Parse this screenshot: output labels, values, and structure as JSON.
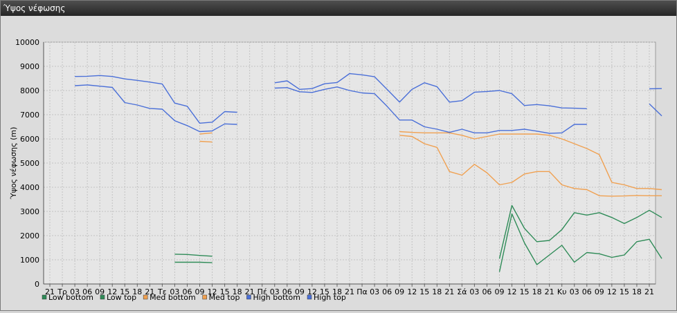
{
  "window": {
    "title": "Ύψος νέφωσης"
  },
  "chart_data": {
    "type": "line",
    "title": "",
    "xlabel": "",
    "ylabel": "Ύψος νέφωσης (m)",
    "ylim": [
      0,
      10000
    ],
    "yticks": [
      0,
      1000,
      2000,
      3000,
      4000,
      5000,
      6000,
      7000,
      8000,
      9000,
      10000
    ],
    "grid": true,
    "legend_position": "bottom-left",
    "x_tick_labels": [
      "21",
      "Τρ",
      "03",
      "06",
      "09",
      "12",
      "15",
      "18",
      "21",
      "Τε",
      "03",
      "06",
      "09",
      "12",
      "15",
      "18",
      "21",
      "Πέ",
      "03",
      "06",
      "09",
      "12",
      "15",
      "18",
      "21",
      "Πα",
      "03",
      "06",
      "09",
      "12",
      "15",
      "18",
      "21",
      "Σά",
      "03",
      "06",
      "09",
      "12",
      "15",
      "18",
      "21",
      "Κυ",
      "03",
      "06",
      "09",
      "12",
      "15",
      "18",
      "21"
    ],
    "series": [
      {
        "name": "Low bottom",
        "color": "#2e8b57",
        "segments": [
          [
            [
              10,
              900
            ],
            [
              11,
              900
            ],
            [
              12,
              900
            ],
            [
              13,
              880
            ]
          ],
          [
            [
              36,
              500
            ],
            [
              37,
              2900
            ],
            [
              38,
              1700
            ],
            [
              39,
              800
            ],
            [
              40,
              1200
            ],
            [
              41,
              1600
            ],
            [
              42,
              900
            ],
            [
              43,
              1300
            ],
            [
              44,
              1250
            ],
            [
              45,
              1100
            ],
            [
              46,
              1200
            ],
            [
              47,
              1750
            ],
            [
              48,
              1850
            ],
            [
              49,
              1050
            ]
          ]
        ]
      },
      {
        "name": "Low top",
        "color": "#2e8b57",
        "segments": [
          [
            [
              10,
              1230
            ],
            [
              11,
              1220
            ],
            [
              12,
              1180
            ],
            [
              13,
              1150
            ]
          ],
          [
            [
              36,
              1050
            ],
            [
              37,
              3250
            ],
            [
              38,
              2300
            ],
            [
              39,
              1750
            ],
            [
              40,
              1800
            ],
            [
              41,
              2250
            ],
            [
              42,
              2950
            ],
            [
              43,
              2850
            ],
            [
              44,
              2950
            ],
            [
              45,
              2750
            ],
            [
              46,
              2500
            ],
            [
              47,
              2750
            ],
            [
              48,
              3050
            ],
            [
              49,
              2750
            ]
          ]
        ]
      },
      {
        "name": "Med bottom",
        "color": "#f0a050",
        "segments": [
          [
            [
              12,
              5900
            ],
            [
              13,
              5870
            ]
          ],
          [
            [
              28,
              6150
            ],
            [
              29,
              6100
            ],
            [
              30,
              5800
            ],
            [
              31,
              5650
            ],
            [
              32,
              4650
            ],
            [
              33,
              4500
            ],
            [
              34,
              4950
            ],
            [
              35,
              4600
            ],
            [
              36,
              4100
            ],
            [
              37,
              4200
            ],
            [
              38,
              4550
            ],
            [
              39,
              4650
            ],
            [
              40,
              4650
            ],
            [
              41,
              4100
            ],
            [
              42,
              3950
            ],
            [
              43,
              3900
            ],
            [
              44,
              3650
            ],
            [
              45,
              3630
            ],
            [
              46,
              3640
            ],
            [
              47,
              3660
            ],
            [
              48,
              3650
            ],
            [
              49,
              3650
            ]
          ]
        ]
      },
      {
        "name": "Med top",
        "color": "#f0a050",
        "segments": [
          [
            [
              12,
              6200
            ],
            [
              13,
              6250
            ]
          ],
          [
            [
              28,
              6300
            ],
            [
              29,
              6270
            ],
            [
              30,
              6250
            ],
            [
              31,
              6250
            ],
            [
              32,
              6250
            ],
            [
              33,
              6150
            ],
            [
              34,
              6000
            ],
            [
              35,
              6100
            ],
            [
              36,
              6200
            ],
            [
              37,
              6200
            ],
            [
              38,
              6200
            ],
            [
              39,
              6200
            ],
            [
              40,
              6150
            ],
            [
              41,
              6000
            ],
            [
              42,
              5800
            ],
            [
              43,
              5600
            ],
            [
              44,
              5350
            ],
            [
              45,
              4200
            ],
            [
              46,
              4100
            ],
            [
              47,
              3950
            ],
            [
              48,
              3950
            ],
            [
              49,
              3900
            ]
          ]
        ]
      },
      {
        "name": "High bottom",
        "color": "#4a6fd8",
        "segments": [
          [
            [
              2,
              8200
            ],
            [
              3,
              8230
            ],
            [
              4,
              8180
            ],
            [
              5,
              8130
            ],
            [
              6,
              7500
            ],
            [
              7,
              7400
            ],
            [
              8,
              7260
            ],
            [
              9,
              7230
            ],
            [
              10,
              6750
            ],
            [
              11,
              6550
            ],
            [
              12,
              6300
            ],
            [
              13,
              6330
            ],
            [
              14,
              6620
            ],
            [
              15,
              6600
            ]
          ],
          [
            [
              18,
              8100
            ],
            [
              19,
              8120
            ],
            [
              20,
              7950
            ],
            [
              21,
              7920
            ],
            [
              22,
              8050
            ],
            [
              23,
              8150
            ],
            [
              24,
              8000
            ],
            [
              25,
              7900
            ],
            [
              26,
              7870
            ],
            [
              27,
              7350
            ],
            [
              28,
              6780
            ],
            [
              29,
              6780
            ],
            [
              30,
              6500
            ],
            [
              31,
              6400
            ],
            [
              32,
              6270
            ],
            [
              33,
              6400
            ],
            [
              34,
              6250
            ],
            [
              35,
              6250
            ],
            [
              36,
              6350
            ],
            [
              37,
              6350
            ],
            [
              38,
              6400
            ],
            [
              39,
              6320
            ],
            [
              40,
              6230
            ],
            [
              41,
              6250
            ],
            [
              42,
              6600
            ],
            [
              43,
              6600
            ]
          ],
          [
            [
              48,
              7450
            ],
            [
              49,
              6950
            ]
          ]
        ]
      },
      {
        "name": "High top",
        "color": "#4a6fd8",
        "segments": [
          [
            [
              2,
              8580
            ],
            [
              3,
              8590
            ],
            [
              4,
              8620
            ],
            [
              5,
              8580
            ],
            [
              6,
              8480
            ],
            [
              7,
              8420
            ],
            [
              8,
              8350
            ],
            [
              9,
              8270
            ],
            [
              10,
              7480
            ],
            [
              11,
              7350
            ],
            [
              12,
              6650
            ],
            [
              13,
              6690
            ],
            [
              14,
              7130
            ],
            [
              15,
              7100
            ]
          ],
          [
            [
              18,
              8320
            ],
            [
              19,
              8400
            ],
            [
              20,
              8050
            ],
            [
              21,
              8080
            ],
            [
              22,
              8280
            ],
            [
              23,
              8330
            ],
            [
              24,
              8700
            ],
            [
              25,
              8650
            ],
            [
              26,
              8570
            ],
            [
              27,
              8050
            ],
            [
              28,
              7520
            ],
            [
              29,
              8050
            ],
            [
              30,
              8320
            ],
            [
              31,
              8160
            ],
            [
              32,
              7520
            ],
            [
              33,
              7580
            ],
            [
              34,
              7930
            ],
            [
              35,
              7960
            ],
            [
              36,
              8000
            ],
            [
              37,
              7870
            ],
            [
              38,
              7380
            ],
            [
              39,
              7420
            ],
            [
              40,
              7370
            ],
            [
              41,
              7280
            ],
            [
              42,
              7270
            ],
            [
              43,
              7250
            ]
          ],
          [
            [
              48,
              8070
            ],
            [
              49,
              8080
            ]
          ]
        ]
      }
    ]
  }
}
